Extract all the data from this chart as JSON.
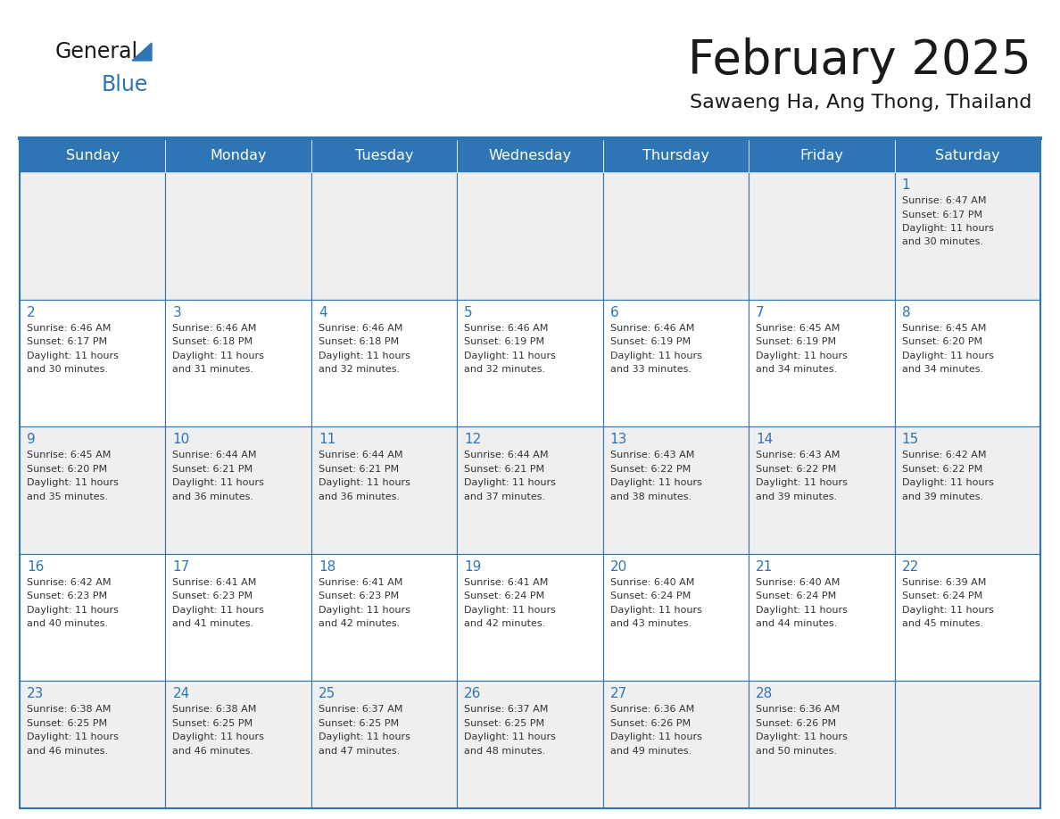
{
  "title": "February 2025",
  "subtitle": "Sawaeng Ha, Ang Thong, Thailand",
  "header_bg": "#2E75B6",
  "header_text_color": "#FFFFFF",
  "cell_border_color": "#2E75B6",
  "day_number_color": "#2E75B6",
  "day_text_color": "#333333",
  "title_color": "#1A1A1A",
  "subtitle_color": "#1A1A1A",
  "logo_general_color": "#1A1A1A",
  "logo_blue_color": "#2E75B6",
  "logo_triangle_color": "#2E75B6",
  "day_headers": [
    "Sunday",
    "Monday",
    "Tuesday",
    "Wednesday",
    "Thursday",
    "Friday",
    "Saturday"
  ],
  "week_row_bg": [
    "#EFEFEF",
    "#FFFFFF",
    "#EFEFEF",
    "#FFFFFF",
    "#EFEFEF"
  ],
  "calendar_data": [
    [
      null,
      null,
      null,
      null,
      null,
      null,
      {
        "day": 1,
        "sunrise": "6:47 AM",
        "sunset": "6:17 PM",
        "daylight": "11 hours and 30 minutes."
      }
    ],
    [
      {
        "day": 2,
        "sunrise": "6:46 AM",
        "sunset": "6:17 PM",
        "daylight": "11 hours and 30 minutes."
      },
      {
        "day": 3,
        "sunrise": "6:46 AM",
        "sunset": "6:18 PM",
        "daylight": "11 hours and 31 minutes."
      },
      {
        "day": 4,
        "sunrise": "6:46 AM",
        "sunset": "6:18 PM",
        "daylight": "11 hours and 32 minutes."
      },
      {
        "day": 5,
        "sunrise": "6:46 AM",
        "sunset": "6:19 PM",
        "daylight": "11 hours and 32 minutes."
      },
      {
        "day": 6,
        "sunrise": "6:46 AM",
        "sunset": "6:19 PM",
        "daylight": "11 hours and 33 minutes."
      },
      {
        "day": 7,
        "sunrise": "6:45 AM",
        "sunset": "6:19 PM",
        "daylight": "11 hours and 34 minutes."
      },
      {
        "day": 8,
        "sunrise": "6:45 AM",
        "sunset": "6:20 PM",
        "daylight": "11 hours and 34 minutes."
      }
    ],
    [
      {
        "day": 9,
        "sunrise": "6:45 AM",
        "sunset": "6:20 PM",
        "daylight": "11 hours and 35 minutes."
      },
      {
        "day": 10,
        "sunrise": "6:44 AM",
        "sunset": "6:21 PM",
        "daylight": "11 hours and 36 minutes."
      },
      {
        "day": 11,
        "sunrise": "6:44 AM",
        "sunset": "6:21 PM",
        "daylight": "11 hours and 36 minutes."
      },
      {
        "day": 12,
        "sunrise": "6:44 AM",
        "sunset": "6:21 PM",
        "daylight": "11 hours and 37 minutes."
      },
      {
        "day": 13,
        "sunrise": "6:43 AM",
        "sunset": "6:22 PM",
        "daylight": "11 hours and 38 minutes."
      },
      {
        "day": 14,
        "sunrise": "6:43 AM",
        "sunset": "6:22 PM",
        "daylight": "11 hours and 39 minutes."
      },
      {
        "day": 15,
        "sunrise": "6:42 AM",
        "sunset": "6:22 PM",
        "daylight": "11 hours and 39 minutes."
      }
    ],
    [
      {
        "day": 16,
        "sunrise": "6:42 AM",
        "sunset": "6:23 PM",
        "daylight": "11 hours and 40 minutes."
      },
      {
        "day": 17,
        "sunrise": "6:41 AM",
        "sunset": "6:23 PM",
        "daylight": "11 hours and 41 minutes."
      },
      {
        "day": 18,
        "sunrise": "6:41 AM",
        "sunset": "6:23 PM",
        "daylight": "11 hours and 42 minutes."
      },
      {
        "day": 19,
        "sunrise": "6:41 AM",
        "sunset": "6:24 PM",
        "daylight": "11 hours and 42 minutes."
      },
      {
        "day": 20,
        "sunrise": "6:40 AM",
        "sunset": "6:24 PM",
        "daylight": "11 hours and 43 minutes."
      },
      {
        "day": 21,
        "sunrise": "6:40 AM",
        "sunset": "6:24 PM",
        "daylight": "11 hours and 44 minutes."
      },
      {
        "day": 22,
        "sunrise": "6:39 AM",
        "sunset": "6:24 PM",
        "daylight": "11 hours and 45 minutes."
      }
    ],
    [
      {
        "day": 23,
        "sunrise": "6:38 AM",
        "sunset": "6:25 PM",
        "daylight": "11 hours and 46 minutes."
      },
      {
        "day": 24,
        "sunrise": "6:38 AM",
        "sunset": "6:25 PM",
        "daylight": "11 hours and 46 minutes."
      },
      {
        "day": 25,
        "sunrise": "6:37 AM",
        "sunset": "6:25 PM",
        "daylight": "11 hours and 47 minutes."
      },
      {
        "day": 26,
        "sunrise": "6:37 AM",
        "sunset": "6:25 PM",
        "daylight": "11 hours and 48 minutes."
      },
      {
        "day": 27,
        "sunrise": "6:36 AM",
        "sunset": "6:26 PM",
        "daylight": "11 hours and 49 minutes."
      },
      {
        "day": 28,
        "sunrise": "6:36 AM",
        "sunset": "6:26 PM",
        "daylight": "11 hours and 50 minutes."
      },
      null
    ]
  ]
}
